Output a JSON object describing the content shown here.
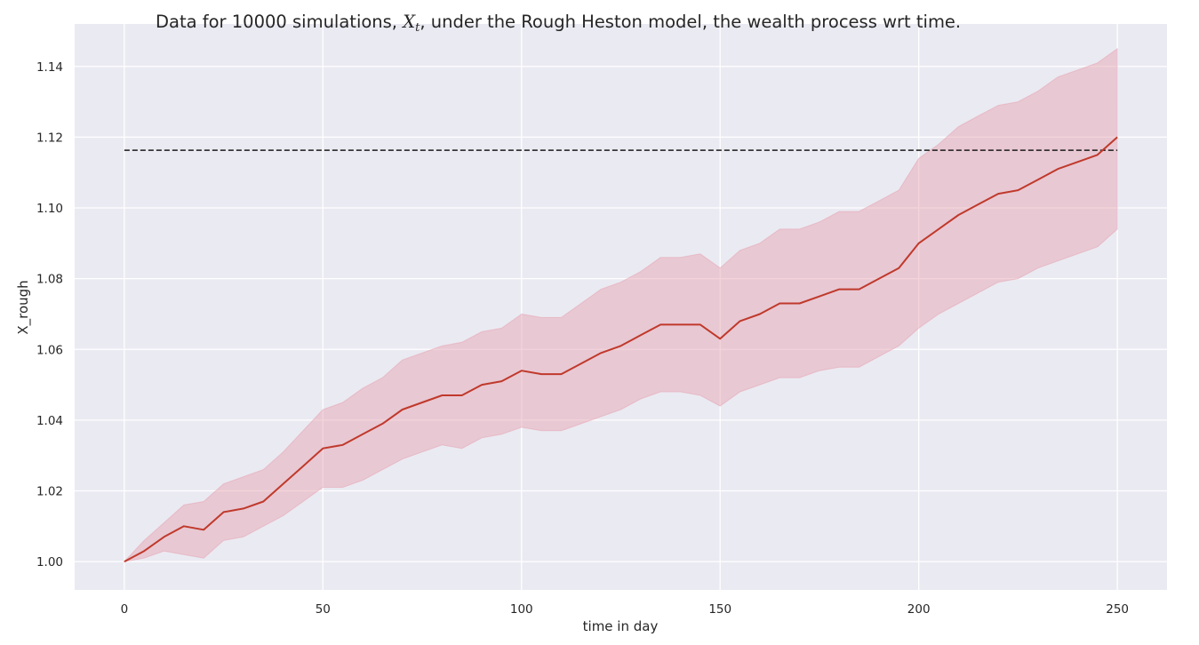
{
  "chart_data": {
    "type": "line",
    "title_prefix": "Data for 10000 simulations,",
    "title_math_main": "X",
    "title_math_sub": "t",
    "title_suffix": ", under the Rough Heston model, the wealth process wrt time.",
    "xlabel": "time in day",
    "ylabel": "X_rough",
    "xlim": [
      -12.5,
      262.5
    ],
    "ylim": [
      0.992,
      1.152
    ],
    "xticks": [
      0,
      50,
      100,
      150,
      200,
      250
    ],
    "xtick_labels": [
      "0",
      "50",
      "100",
      "150",
      "200",
      "250"
    ],
    "yticks": [
      1.0,
      1.02,
      1.04,
      1.06,
      1.08,
      1.1,
      1.12,
      1.14
    ],
    "ytick_labels": [
      "1.00",
      "1.02",
      "1.04",
      "1.06",
      "1.08",
      "1.10",
      "1.12",
      "1.14"
    ],
    "grid": true,
    "legend": false,
    "colors": {
      "background": "#eaeaf2",
      "grid": "#ffffff",
      "mean_line": "#c0392b",
      "band": "#e6a0ad",
      "reference_line": "#1a1a1a"
    },
    "reference_line": {
      "y": 1.1163,
      "x_range": [
        0,
        250
      ],
      "style": "dashed"
    },
    "series": [
      {
        "x": [
          0,
          5,
          10,
          15,
          20,
          25,
          30,
          35,
          40,
          45,
          50,
          55,
          60,
          65,
          70,
          75,
          80,
          85,
          90,
          95,
          100,
          105,
          110,
          115,
          120,
          125,
          130,
          135,
          140,
          145,
          150,
          155,
          160,
          165,
          170,
          175,
          180,
          185,
          190,
          195,
          200,
          205,
          210,
          215,
          220,
          225,
          230,
          235,
          240,
          245,
          250
        ],
        "mean": [
          1.0,
          1.003,
          1.007,
          1.01,
          1.009,
          1.014,
          1.015,
          1.017,
          1.022,
          1.027,
          1.032,
          1.033,
          1.036,
          1.039,
          1.043,
          1.045,
          1.047,
          1.047,
          1.05,
          1.051,
          1.054,
          1.053,
          1.053,
          1.056,
          1.059,
          1.061,
          1.064,
          1.067,
          1.067,
          1.067,
          1.063,
          1.068,
          1.07,
          1.073,
          1.073,
          1.075,
          1.077,
          1.077,
          1.08,
          1.083,
          1.09,
          1.094,
          1.098,
          1.101,
          1.104,
          1.105,
          1.108,
          1.111,
          1.113,
          1.115,
          1.12
        ],
        "lower": [
          1.0,
          1.001,
          1.003,
          1.002,
          1.001,
          1.006,
          1.007,
          1.01,
          1.013,
          1.017,
          1.021,
          1.021,
          1.023,
          1.026,
          1.029,
          1.031,
          1.033,
          1.032,
          1.035,
          1.036,
          1.038,
          1.037,
          1.037,
          1.039,
          1.041,
          1.043,
          1.046,
          1.048,
          1.048,
          1.047,
          1.044,
          1.048,
          1.05,
          1.052,
          1.052,
          1.054,
          1.055,
          1.055,
          1.058,
          1.061,
          1.066,
          1.07,
          1.073,
          1.076,
          1.079,
          1.08,
          1.083,
          1.085,
          1.087,
          1.089,
          1.094
        ],
        "upper": [
          1.0,
          1.006,
          1.011,
          1.016,
          1.017,
          1.022,
          1.024,
          1.026,
          1.031,
          1.037,
          1.043,
          1.045,
          1.049,
          1.052,
          1.057,
          1.059,
          1.061,
          1.062,
          1.065,
          1.066,
          1.07,
          1.069,
          1.069,
          1.073,
          1.077,
          1.079,
          1.082,
          1.086,
          1.086,
          1.087,
          1.083,
          1.088,
          1.09,
          1.094,
          1.094,
          1.096,
          1.099,
          1.099,
          1.102,
          1.105,
          1.114,
          1.118,
          1.123,
          1.126,
          1.129,
          1.13,
          1.133,
          1.137,
          1.139,
          1.141,
          1.145
        ]
      }
    ]
  }
}
